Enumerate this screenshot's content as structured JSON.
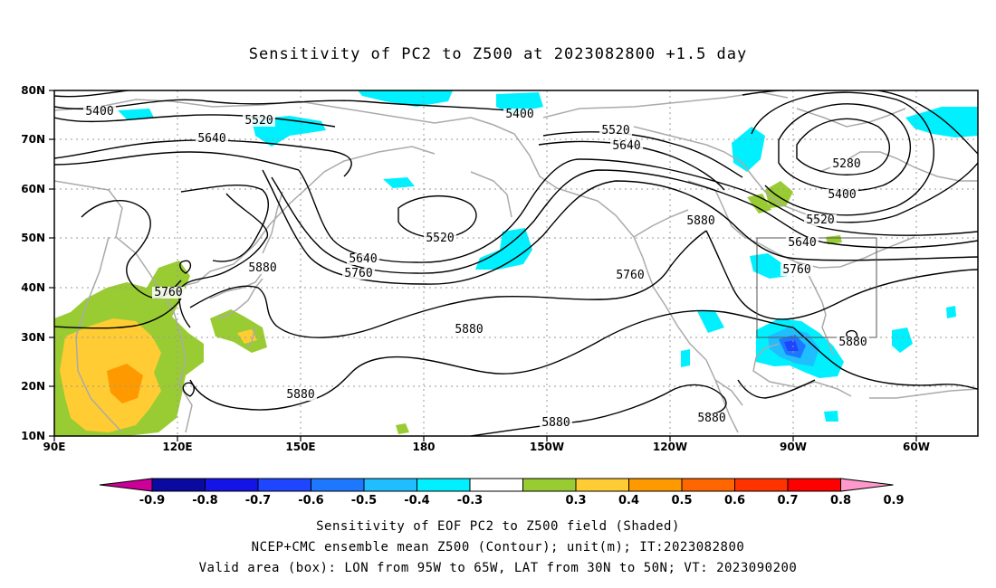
{
  "title": "Sensitivity of PC2 to Z500 at 2023082800 +1.5 day",
  "captions": [
    "Sensitivity of EOF PC2 to Z500 field (Shaded)",
    "NCEP+CMC ensemble mean Z500 (Contour); unit(m); IT:2023082800",
    "Valid area (box): LON from 95W to 65W, LAT from 30N to 50N; VT: 2023090200"
  ],
  "map": {
    "lat_labels": [
      "80N",
      "70N",
      "60N",
      "50N",
      "40N",
      "30N",
      "20N",
      "10N"
    ],
    "lon_labels": [
      "90E",
      "120E",
      "150E",
      "180",
      "150W",
      "120W",
      "90W",
      "60W"
    ],
    "lat_range": [
      10,
      80
    ],
    "lon_range": [
      90,
      315
    ],
    "grid": "dotted",
    "valid_box": {
      "lon": [
        "95W",
        "65W"
      ],
      "lat": [
        "30N",
        "50N"
      ]
    },
    "contour_levels": [
      "5280",
      "5400",
      "5520",
      "5640",
      "5760",
      "5880"
    ],
    "contour_labels": [
      "5400",
      "5520",
      "5640",
      "5400",
      "5520",
      "5640",
      "5280",
      "5400",
      "5520",
      "5640",
      "5760",
      "5520",
      "5640",
      "5760",
      "5880",
      "5880",
      "5760",
      "5880",
      "5880",
      "5880",
      "5880",
      "5880",
      "5760"
    ]
  },
  "colorbar": {
    "ticks": [
      "-0.9",
      "-0.8",
      "-0.7",
      "-0.6",
      "-0.5",
      "-0.4",
      "-0.3",
      "0.3",
      "0.4",
      "0.5",
      "0.6",
      "0.7",
      "0.8",
      "0.9"
    ],
    "colors": [
      "#0a0aa0",
      "#1414e6",
      "#1e46ff",
      "#1e78ff",
      "#1ebeff",
      "#00f0ff",
      "#ffffff",
      "#99cc33",
      "#ffcc33",
      "#ff9900",
      "#ff6600",
      "#ff3300",
      "#ff0000"
    ],
    "low_end_color": "#cc0099",
    "high_end_color": "#ff99cc"
  },
  "colors": {
    "coast": "#aaaaaa",
    "contour": "#000000",
    "grid": "#999999"
  }
}
